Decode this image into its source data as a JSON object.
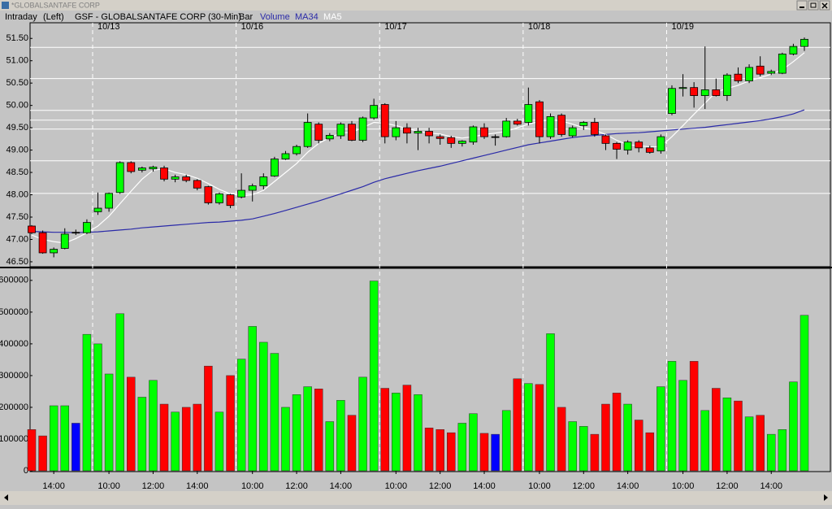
{
  "window_title": "*GLOBALSANTAFE CORP",
  "chart_data": {
    "type": "candlestick",
    "mode_label": "Intraday",
    "side_label": "(Left)",
    "title": "GSF - GLOBALSANTAFE CORP (30-Min)",
    "style_label": "Bar",
    "categories": [
      null,
      null,
      "14:00",
      null,
      null,
      null,
      null,
      "10:00",
      null,
      null,
      null,
      "12:00",
      null,
      null,
      null,
      "14:00",
      null,
      null,
      null,
      null,
      "10:00",
      null,
      null,
      null,
      "12:00",
      null,
      null,
      null,
      "14:00",
      null,
      null,
      null,
      null,
      "10:00",
      null,
      null,
      null,
      "12:00",
      null,
      null,
      null,
      "14:00",
      null,
      null,
      null,
      null,
      "10:00",
      null,
      null,
      null,
      "12:00",
      null,
      null,
      null,
      "14:00",
      null,
      null,
      null,
      null,
      "10:00",
      null,
      null,
      null,
      "12:00",
      null,
      null,
      null,
      "14:00",
      null,
      null,
      null
    ],
    "dates": [
      null,
      null,
      null,
      null,
      null,
      null,
      "10/13",
      null,
      null,
      null,
      null,
      null,
      null,
      null,
      null,
      null,
      null,
      null,
      null,
      "10/16",
      null,
      null,
      null,
      null,
      null,
      null,
      null,
      null,
      null,
      null,
      null,
      null,
      "10/17",
      null,
      null,
      null,
      null,
      null,
      null,
      null,
      null,
      null,
      null,
      null,
      null,
      "10/18",
      null,
      null,
      null,
      null,
      null,
      null,
      null,
      null,
      null,
      null,
      null,
      null,
      "10/19",
      null,
      null,
      null,
      null,
      null,
      null,
      null,
      null,
      null,
      null,
      null,
      null
    ],
    "open": [
      47.3,
      47.15,
      46.7,
      46.8,
      47.16,
      47.15,
      47.62,
      47.7,
      48.05,
      48.72,
      48.55,
      48.58,
      48.6,
      48.35,
      48.4,
      48.32,
      48.18,
      47.82,
      48.0,
      47.95,
      48.1,
      48.2,
      48.42,
      48.8,
      48.92,
      49.08,
      49.58,
      49.25,
      49.32,
      49.58,
      49.22,
      49.72,
      50.02,
      49.3,
      49.5,
      49.38,
      49.42,
      49.3,
      49.28,
      49.15,
      49.18,
      49.5,
      49.3,
      49.3,
      49.65,
      49.62,
      50.08,
      49.3,
      49.78,
      49.32,
      49.55,
      49.62,
      49.32,
      49.15,
      49.0,
      49.18,
      49.05,
      48.98,
      49.82,
      50.38,
      50.4,
      50.22,
      50.35,
      50.22,
      50.7,
      50.55,
      50.88,
      50.72,
      50.72,
      51.15,
      51.32
    ],
    "high": [
      47.32,
      47.2,
      46.82,
      47.25,
      47.22,
      47.45,
      48.05,
      48.05,
      48.75,
      48.75,
      48.63,
      48.65,
      48.65,
      48.45,
      48.45,
      48.35,
      48.2,
      48.05,
      48.02,
      48.48,
      48.25,
      48.48,
      48.85,
      48.98,
      49.12,
      49.82,
      49.62,
      49.38,
      49.62,
      49.65,
      49.75,
      50.15,
      50.05,
      49.65,
      49.6,
      49.5,
      49.5,
      49.35,
      49.32,
      49.22,
      49.55,
      49.6,
      49.35,
      49.72,
      49.7,
      50.4,
      50.12,
      49.82,
      49.82,
      49.55,
      49.65,
      49.72,
      49.35,
      49.18,
      49.22,
      49.22,
      49.1,
      49.35,
      50.45,
      50.7,
      50.52,
      51.32,
      50.6,
      50.72,
      50.85,
      50.92,
      51.1,
      50.8,
      51.18,
      51.38,
      51.52
    ],
    "low": [
      47.12,
      46.68,
      46.6,
      46.78,
      47.1,
      47.12,
      47.55,
      47.62,
      48.02,
      48.48,
      48.5,
      48.52,
      48.3,
      48.28,
      48.28,
      48.1,
      47.78,
      47.78,
      47.7,
      47.92,
      47.85,
      48.12,
      48.4,
      48.78,
      48.88,
      49.05,
      49.15,
      49.2,
      49.25,
      49.2,
      49.18,
      49.68,
      49.15,
      49.22,
      49.15,
      49.0,
      49.15,
      49.12,
      49.05,
      49.08,
      49.12,
      49.25,
      49.1,
      49.28,
      49.55,
      49.55,
      49.15,
      49.25,
      49.3,
      49.28,
      49.45,
      49.3,
      49.0,
      48.8,
      48.9,
      48.95,
      48.92,
      48.92,
      49.78,
      50.2,
      49.95,
      49.92,
      50.2,
      50.1,
      50.5,
      50.5,
      50.65,
      50.68,
      50.7,
      51.12,
      51.22
    ],
    "close": [
      47.15,
      46.7,
      46.78,
      47.12,
      47.16,
      47.38,
      47.7,
      48.03,
      48.72,
      48.52,
      48.6,
      48.62,
      48.35,
      48.4,
      48.32,
      48.15,
      47.82,
      48.02,
      47.76,
      48.1,
      48.2,
      48.4,
      48.8,
      48.92,
      49.08,
      49.62,
      49.22,
      49.33,
      49.58,
      49.22,
      49.72,
      50.0,
      49.3,
      49.5,
      49.38,
      49.42,
      49.32,
      49.26,
      49.15,
      49.2,
      49.52,
      49.3,
      49.3,
      49.65,
      49.58,
      50.02,
      49.3,
      49.75,
      49.35,
      49.5,
      49.62,
      49.35,
      49.15,
      49.02,
      49.18,
      49.05,
      48.95,
      49.3,
      50.38,
      50.4,
      50.22,
      50.35,
      50.22,
      50.68,
      50.55,
      50.85,
      50.7,
      50.76,
      51.15,
      51.32,
      51.48
    ],
    "up_color": "#00ff00",
    "down_color": "#ff0000",
    "flat_color": "#0000ff",
    "ylim": [
      46.39,
      51.85
    ],
    "yticks": [
      {
        "value": 46.5,
        "label": "46.50"
      },
      {
        "value": 47,
        "label": "47.00"
      },
      {
        "value": 47.5,
        "label": "47.50"
      },
      {
        "value": 48,
        "label": "48.00"
      },
      {
        "value": 48.5,
        "label": "48.50"
      },
      {
        "value": 49,
        "label": "49.00"
      },
      {
        "value": 49.5,
        "label": "49.50"
      },
      {
        "value": 50,
        "label": "50.00"
      },
      {
        "value": 50.5,
        "label": "50.50"
      },
      {
        "value": 51,
        "label": "51.00"
      },
      {
        "value": 51.5,
        "label": "51.50"
      }
    ],
    "horizontal_lines": [
      51.3,
      50.6,
      49.89,
      49.67,
      49.47,
      48.76,
      48.03
    ],
    "overlays": [
      {
        "name": "MA34",
        "color": "#2a2aa8",
        "values": [
          47.18,
          47.17,
          47.16,
          47.16,
          47.15,
          47.16,
          47.17,
          47.19,
          47.21,
          47.23,
          47.26,
          47.28,
          47.3,
          47.32,
          47.34,
          47.36,
          47.38,
          47.39,
          47.41,
          47.43,
          47.46,
          47.52,
          47.58,
          47.65,
          47.72,
          47.79,
          47.86,
          47.94,
          48.02,
          48.1,
          48.18,
          48.28,
          48.36,
          48.42,
          48.48,
          48.54,
          48.59,
          48.64,
          48.7,
          48.76,
          48.82,
          48.88,
          48.94,
          49.0,
          49.06,
          49.12,
          49.16,
          49.2,
          49.24,
          49.28,
          49.31,
          49.33,
          49.35,
          49.37,
          49.38,
          49.39,
          49.41,
          49.43,
          49.45,
          49.47,
          49.49,
          49.51,
          49.54,
          49.57,
          49.6,
          49.63,
          49.66,
          49.7,
          49.75,
          49.81,
          49.9
        ]
      },
      {
        "name": "MA5",
        "color": "#ffffff",
        "values": [
          47.1,
          47.0,
          46.95,
          46.92,
          47.02,
          47.15,
          47.3,
          47.52,
          47.8,
          48.08,
          48.35,
          48.55,
          48.58,
          48.5,
          48.45,
          48.37,
          48.25,
          48.12,
          48.02,
          47.98,
          48.0,
          48.1,
          48.3,
          48.5,
          48.7,
          48.95,
          49.15,
          49.28,
          49.38,
          49.4,
          49.5,
          49.62,
          49.6,
          49.55,
          49.48,
          49.42,
          49.38,
          49.36,
          49.3,
          49.27,
          49.3,
          49.35,
          49.38,
          49.42,
          49.5,
          49.58,
          49.64,
          49.68,
          49.65,
          49.58,
          49.5,
          49.45,
          49.35,
          49.22,
          49.12,
          49.1,
          49.07,
          49.08,
          49.3,
          49.55,
          49.8,
          50.05,
          50.3,
          50.38,
          50.45,
          50.55,
          50.62,
          50.7,
          50.8,
          50.98,
          51.18
        ]
      }
    ],
    "volume": {
      "name": "Volume",
      "color": "#2a2aa8",
      "values": [
        130000,
        110000,
        205000,
        205000,
        150000,
        430000,
        400000,
        305000,
        495000,
        295000,
        232000,
        285000,
        210000,
        185000,
        200000,
        210000,
        330000,
        185000,
        300000,
        352000,
        455000,
        405000,
        370000,
        200000,
        240000,
        265000,
        258000,
        155000,
        222000,
        175000,
        295000,
        598000,
        260000,
        245000,
        270000,
        240000,
        135000,
        130000,
        120000,
        150000,
        180000,
        118000,
        115000,
        190000,
        290000,
        275000,
        272000,
        432000,
        200000,
        155000,
        140000,
        115000,
        210000,
        245000,
        210000,
        160000,
        120000,
        265000,
        345000,
        285000,
        345000,
        190000,
        260000,
        230000,
        220000,
        170000,
        175000,
        115000,
        130000,
        280000,
        490000
      ],
      "ylim": [
        0,
        638000
      ],
      "yticks": [
        0,
        100000,
        200000,
        300000,
        400000,
        500000,
        600000
      ]
    }
  }
}
